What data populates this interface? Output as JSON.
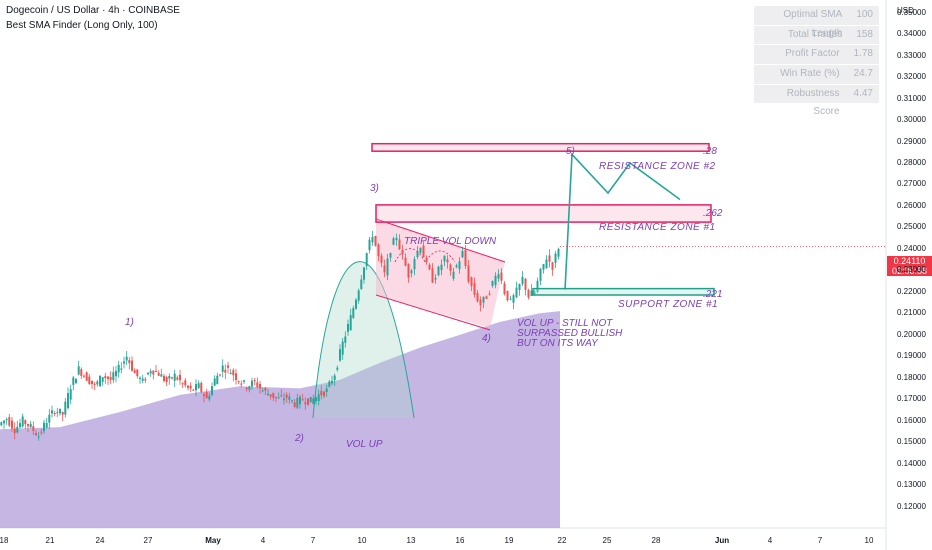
{
  "header": {
    "title": "Dogecoin / US Dollar · 4h · COINBASE",
    "indicator": "Best SMA Finder (Long Only, 100)"
  },
  "stats": [
    {
      "label": "Optimal SMA Length",
      "value": "100"
    },
    {
      "label": "Total Trades",
      "value": "158"
    },
    {
      "label": "Profit Factor",
      "value": "1.78"
    },
    {
      "label": "Win Rate (%)",
      "value": "24.7"
    },
    {
      "label": "Robustness Score",
      "value": "4.47"
    }
  ],
  "price_axis": {
    "currency": "USD",
    "current_price": "0.24110",
    "countdown": "02:00:58"
  },
  "annotations": {
    "wave_1": "1)",
    "wave_2": "2)",
    "wave_3": "3)",
    "wave_4": "4)",
    "wave_5": "5)",
    "vol_up": "VOL UP",
    "triple_vol_down": "TRIPLE VOL DOWN",
    "vol_up_note_1": "VOL UP - STILL NOT",
    "vol_up_note_2": "SURPASSED BULLISH",
    "vol_up_note_3": "BUT ON ITS WAY",
    "resistance_2": "RESISTANCE ZONE #2",
    "resistance_1": "RESISTANCE ZONE #1",
    "support_1": "SUPPORT ZONE #1",
    "level_28": ".28",
    "level_262": ".262",
    "level_221": ".221"
  },
  "colors": {
    "up_candle": "#26a69a",
    "down_candle": "#ef5350",
    "sma_fill": "#b39ddb",
    "zone_border": "#e91e63",
    "support_border": "#1fa187",
    "projection": "#26a69a",
    "annotation_text": "#7b3fb5",
    "price_tag": "#f23645"
  },
  "chart_data": {
    "type": "candlestick",
    "title": "Dogecoin / US Dollar · 4h · COINBASE",
    "ylim": [
      0.115,
      0.355
    ],
    "y_ticks": [
      "0.35000",
      "0.34000",
      "0.33000",
      "0.32000",
      "0.31000",
      "0.30000",
      "0.29000",
      "0.28000",
      "0.27000",
      "0.26000",
      "0.25000",
      "0.24000",
      "0.23000",
      "0.22000",
      "0.21000",
      "0.20000",
      "0.19000",
      "0.18000",
      "0.17000",
      "0.16000",
      "0.15000",
      "0.14000",
      "0.13000",
      "0.12000"
    ],
    "x_ticks": [
      "18",
      "21",
      "24",
      "27",
      "May",
      "4",
      "7",
      "10",
      "13",
      "16",
      "19",
      "22",
      "25",
      "28",
      "Jun",
      "4",
      "7",
      "10"
    ],
    "price_path": [
      [
        0,
        0.158
      ],
      [
        8,
        0.161
      ],
      [
        16,
        0.156
      ],
      [
        24,
        0.16
      ],
      [
        32,
        0.157
      ],
      [
        40,
        0.153
      ],
      [
        48,
        0.16
      ],
      [
        56,
        0.165
      ],
      [
        64,
        0.163
      ],
      [
        72,
        0.176
      ],
      [
        80,
        0.184
      ],
      [
        88,
        0.18
      ],
      [
        96,
        0.176
      ],
      [
        104,
        0.181
      ],
      [
        112,
        0.179
      ],
      [
        120,
        0.184
      ],
      [
        128,
        0.19
      ],
      [
        136,
        0.182
      ],
      [
        144,
        0.178
      ],
      [
        152,
        0.184
      ],
      [
        160,
        0.182
      ],
      [
        168,
        0.178
      ],
      [
        176,
        0.181
      ],
      [
        184,
        0.177
      ],
      [
        192,
        0.174
      ],
      [
        200,
        0.176
      ],
      [
        208,
        0.17
      ],
      [
        216,
        0.179
      ],
      [
        224,
        0.185
      ],
      [
        232,
        0.183
      ],
      [
        240,
        0.179
      ],
      [
        248,
        0.176
      ],
      [
        256,
        0.178
      ],
      [
        264,
        0.174
      ],
      [
        272,
        0.172
      ],
      [
        280,
        0.17
      ],
      [
        288,
        0.171
      ],
      [
        296,
        0.168
      ],
      [
        304,
        0.17
      ],
      [
        312,
        0.169
      ],
      [
        320,
        0.172
      ],
      [
        328,
        0.174
      ],
      [
        336,
        0.182
      ],
      [
        344,
        0.196
      ],
      [
        352,
        0.208
      ],
      [
        360,
        0.222
      ],
      [
        368,
        0.238
      ],
      [
        374,
        0.247
      ],
      [
        380,
        0.236
      ],
      [
        386,
        0.228
      ],
      [
        392,
        0.24
      ],
      [
        398,
        0.246
      ],
      [
        404,
        0.236
      ],
      [
        410,
        0.228
      ],
      [
        416,
        0.236
      ],
      [
        422,
        0.242
      ],
      [
        428,
        0.232
      ],
      [
        434,
        0.226
      ],
      [
        440,
        0.23
      ],
      [
        446,
        0.236
      ],
      [
        452,
        0.228
      ],
      [
        458,
        0.232
      ],
      [
        464,
        0.238
      ],
      [
        470,
        0.226
      ],
      [
        476,
        0.219
      ],
      [
        482,
        0.214
      ],
      [
        488,
        0.218
      ],
      [
        494,
        0.224
      ],
      [
        500,
        0.23
      ],
      [
        506,
        0.22
      ],
      [
        512,
        0.215
      ],
      [
        518,
        0.22
      ],
      [
        524,
        0.226
      ],
      [
        530,
        0.218
      ],
      [
        536,
        0.22
      ],
      [
        542,
        0.229
      ],
      [
        548,
        0.236
      ],
      [
        554,
        0.232
      ],
      [
        560,
        0.241
      ]
    ],
    "sma_series": {
      "name": "SMA 100",
      "points": [
        [
          0,
          0.156
        ],
        [
          60,
          0.157
        ],
        [
          120,
          0.164
        ],
        [
          180,
          0.172
        ],
        [
          240,
          0.176
        ],
        [
          300,
          0.175
        ],
        [
          340,
          0.179
        ],
        [
          380,
          0.187
        ],
        [
          420,
          0.194
        ],
        [
          460,
          0.2
        ],
        [
          500,
          0.206
        ],
        [
          540,
          0.21
        ],
        [
          560,
          0.211
        ]
      ]
    },
    "zones": [
      {
        "name": "RESISTANCE ZONE #2",
        "level": 0.28,
        "y_range": [
          0.2855,
          0.289
        ]
      },
      {
        "name": "RESISTANCE ZONE #1",
        "level": 0.262,
        "y_range": [
          0.2525,
          0.2605
        ]
      },
      {
        "name": "SUPPORT ZONE #1",
        "level": 0.221,
        "y_range": [
          0.2185,
          0.2215
        ]
      }
    ],
    "projection": [
      [
        565,
        0.221
      ],
      [
        572,
        0.284
      ],
      [
        608,
        0.266
      ],
      [
        630,
        0.28
      ],
      [
        680,
        0.263
      ]
    ]
  }
}
